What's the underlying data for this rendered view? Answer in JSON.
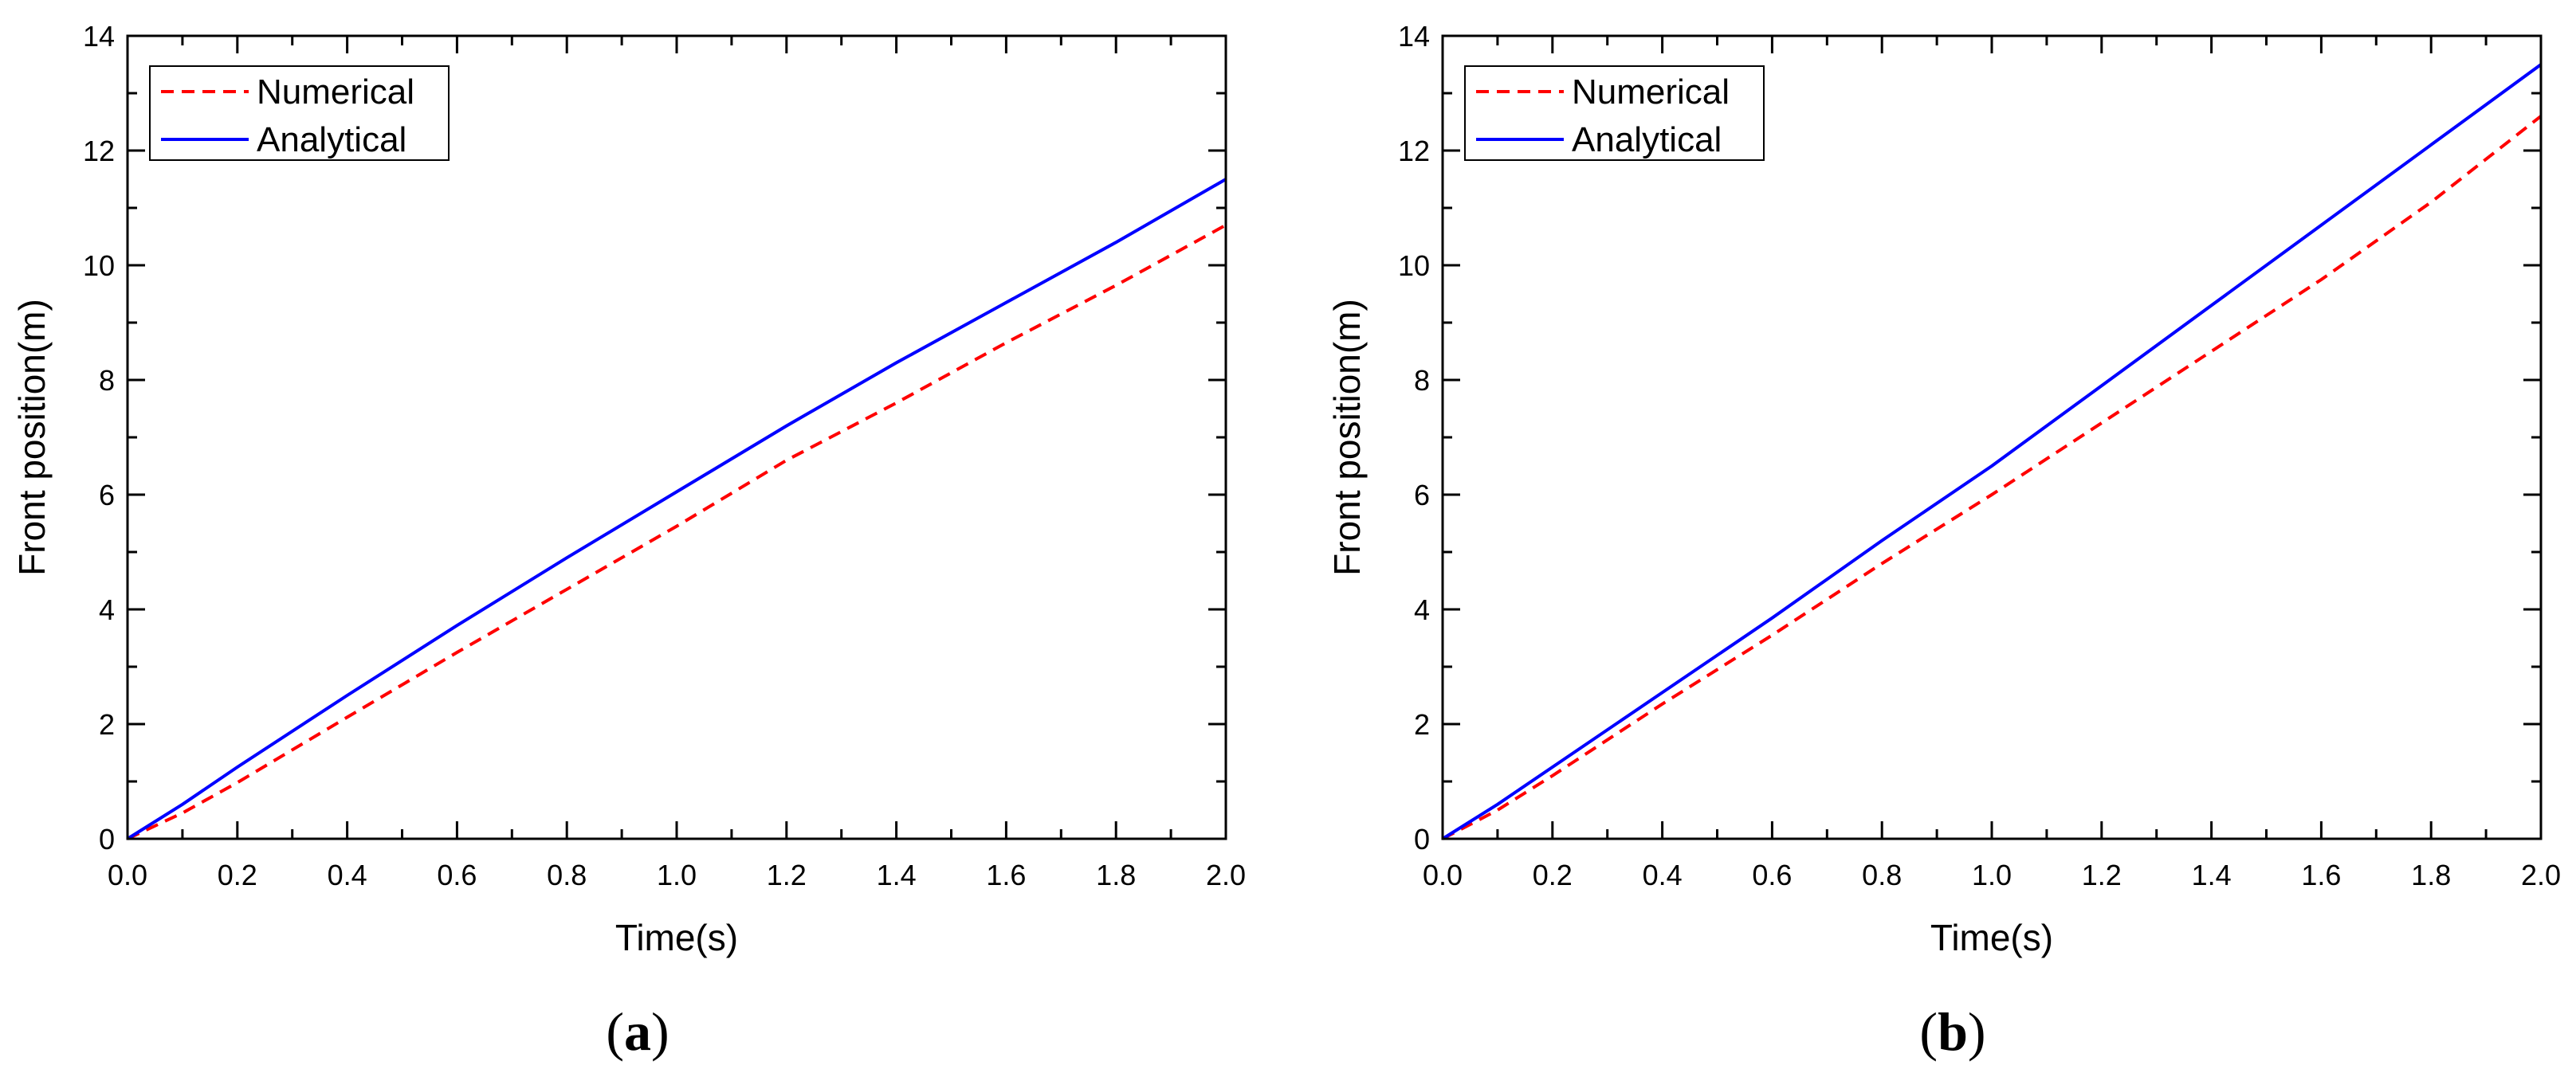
{
  "chart_data": [
    {
      "type": "line",
      "panel_label": "a",
      "title": "",
      "xlabel": "Time(s)",
      "ylabel": "Front position(m)",
      "xlim": [
        0,
        2.0
      ],
      "ylim": [
        0,
        14
      ],
      "x_ticks": [
        "0.0",
        "0.2",
        "0.4",
        "0.6",
        "0.8",
        "1.0",
        "1.2",
        "1.4",
        "1.6",
        "1.8",
        "2.0"
      ],
      "y_ticks": [
        "0",
        "2",
        "4",
        "6",
        "8",
        "10",
        "12",
        "14"
      ],
      "legend_position": "top-left",
      "series": [
        {
          "name": "Numerical",
          "color": "#ff0000",
          "style": "dashed",
          "x": [
            0,
            0.1,
            0.2,
            0.4,
            0.6,
            0.8,
            1.0,
            1.2,
            1.4,
            1.6,
            1.8,
            2.0
          ],
          "y": [
            0,
            0.45,
            0.98,
            2.12,
            3.25,
            4.35,
            5.45,
            6.6,
            7.6,
            8.65,
            9.65,
            10.7
          ]
        },
        {
          "name": "Analytical",
          "color": "#0000ff",
          "style": "solid",
          "x": [
            0,
            0.1,
            0.2,
            0.4,
            0.6,
            0.8,
            1.0,
            1.2,
            1.4,
            1.6,
            1.8,
            2.0
          ],
          "y": [
            0,
            0.6,
            1.25,
            2.5,
            3.72,
            4.9,
            6.05,
            7.2,
            8.3,
            9.35,
            10.4,
            11.5
          ]
        }
      ]
    },
    {
      "type": "line",
      "panel_label": "b",
      "title": "",
      "xlabel": "Time(s)",
      "ylabel": "Front position(m)",
      "xlim": [
        0,
        2.0
      ],
      "ylim": [
        0,
        14
      ],
      "x_ticks": [
        "0.0",
        "0.2",
        "0.4",
        "0.6",
        "0.8",
        "1.0",
        "1.2",
        "1.4",
        "1.6",
        "1.8",
        "2.0"
      ],
      "y_ticks": [
        "0",
        "2",
        "4",
        "6",
        "8",
        "10",
        "12",
        "14"
      ],
      "legend_position": "top-left",
      "series": [
        {
          "name": "Numerical",
          "color": "#ff0000",
          "style": "dashed",
          "x": [
            0,
            0.1,
            0.2,
            0.4,
            0.6,
            0.8,
            1.0,
            1.2,
            1.4,
            1.6,
            1.8,
            2.0
          ],
          "y": [
            0,
            0.5,
            1.1,
            2.35,
            3.55,
            4.8,
            6.0,
            7.25,
            8.5,
            9.75,
            11.1,
            12.6
          ]
        },
        {
          "name": "Analytical",
          "color": "#0000ff",
          "style": "solid",
          "x": [
            0,
            0.1,
            0.2,
            0.4,
            0.6,
            0.8,
            1.0,
            1.2,
            1.4,
            1.6,
            1.8,
            2.0
          ],
          "y": [
            0,
            0.6,
            1.25,
            2.55,
            3.85,
            5.2,
            6.5,
            7.9,
            9.3,
            10.7,
            12.1,
            13.5
          ]
        }
      ]
    }
  ]
}
